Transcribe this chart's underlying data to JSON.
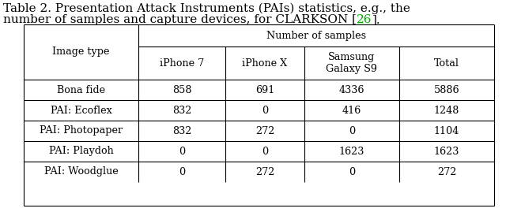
{
  "title_line1": "Table 2. Presentation Attack Instruments (PAIs) statistics, e.g., the",
  "title_line2_pre": "number of samples and capture devices, for CLARKSON [",
  "title_line2_ref": "26",
  "title_line2_post": "].",
  "title_ref_color": "#00aa00",
  "header_span": "Number of samples",
  "col0_header": "Image type",
  "col_headers": [
    "iPhone 7",
    "iPhone X",
    "Samsung\nGalaxy S9",
    "Total"
  ],
  "row_labels": [
    "Bona fide",
    "PAI: Ecoflex",
    "PAI: Photopaper",
    "PAI: Playdoh",
    "PAI: Woodglue"
  ],
  "data": [
    [
      "858",
      "691",
      "4336",
      "5886"
    ],
    [
      "832",
      "0",
      "416",
      "1248"
    ],
    [
      "832",
      "272",
      "0",
      "1104"
    ],
    [
      "0",
      "0",
      "1623",
      "1623"
    ],
    [
      "0",
      "272",
      "0",
      "272"
    ]
  ],
  "bg_color": "#ffffff",
  "font_size_title": 11.0,
  "font_size_table": 9.2
}
